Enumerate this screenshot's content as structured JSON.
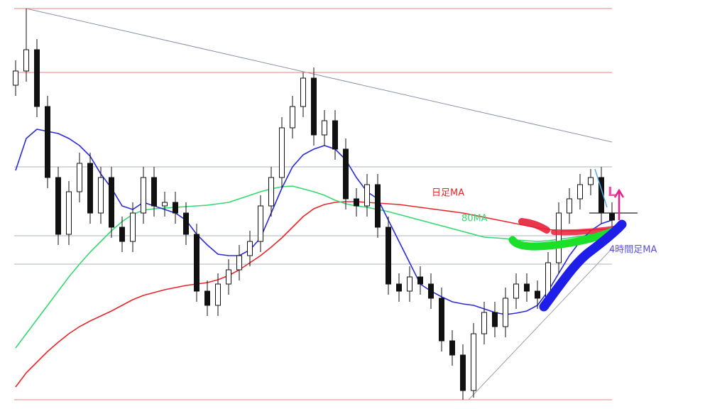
{
  "chart_data": {
    "type": "candlestick",
    "ylim": [
      0,
      576
    ],
    "open": [
      456,
      476,
      506,
      426,
      326,
      246,
      306,
      346,
      276,
      326,
      256,
      236,
      276,
      326,
      286,
      291,
      276,
      246,
      166,
      146,
      176,
      196,
      216,
      236,
      286,
      326,
      396,
      426,
      466,
      386,
      406,
      366,
      296,
      286,
      316,
      256,
      176,
      166,
      186,
      176,
      156,
      96,
      76,
      26,
      106,
      136,
      116,
      156,
      176,
      166,
      156,
      206,
      276,
      296,
      316,
      326,
      276
    ],
    "high": [
      491,
      564,
      521,
      441,
      341,
      321,
      361,
      361,
      341,
      341,
      271,
      291,
      341,
      341,
      306,
      306,
      291,
      261,
      181,
      191,
      211,
      231,
      251,
      301,
      341,
      411,
      441,
      474,
      481,
      421,
      421,
      381,
      311,
      331,
      331,
      271,
      191,
      201,
      201,
      191,
      171,
      111,
      91,
      121,
      151,
      151,
      171,
      191,
      191,
      181,
      221,
      291,
      311,
      331,
      338,
      341,
      291
    ],
    "low": [
      441,
      461,
      411,
      311,
      231,
      231,
      291,
      261,
      261,
      241,
      221,
      221,
      261,
      271,
      271,
      261,
      231,
      151,
      131,
      131,
      161,
      181,
      201,
      221,
      271,
      311,
      381,
      411,
      371,
      371,
      351,
      281,
      271,
      271,
      241,
      161,
      151,
      151,
      161,
      141,
      81,
      61,
      13,
      16,
      91,
      101,
      101,
      141,
      151,
      141,
      141,
      191,
      261,
      281,
      301,
      261,
      251
    ],
    "close": [
      476,
      506,
      426,
      326,
      246,
      306,
      346,
      276,
      326,
      256,
      236,
      276,
      326,
      286,
      291,
      276,
      246,
      166,
      146,
      176,
      196,
      216,
      236,
      286,
      326,
      396,
      426,
      466,
      386,
      406,
      366,
      296,
      286,
      316,
      256,
      176,
      166,
      186,
      176,
      156,
      96,
      76,
      26,
      106,
      136,
      116,
      156,
      176,
      166,
      156,
      206,
      276,
      296,
      316,
      326,
      276,
      266
    ],
    "lines": [
      {
        "name": "日足MA",
        "color": "#e8262a",
        "values": [
          31,
          51,
          66,
          81,
          94,
          106,
          116,
          124,
          131,
          138,
          146,
          154,
          160,
          164,
          168,
          171,
          174,
          176,
          178,
          182,
          188,
          196,
          206,
          216,
          228,
          241,
          256,
          271,
          282,
          288,
          291,
          292,
          292,
          291,
          290,
          289,
          288,
          286,
          284,
          282,
          280,
          278,
          276,
          273,
          270,
          267,
          264,
          261,
          258,
          255,
          253,
          251,
          251,
          251,
          252,
          253,
          254
        ]
      },
      {
        "name": "80MA",
        "color": "#34d970",
        "values": [
          86,
          106,
          126,
          146,
          166,
          186,
          204,
          221,
          236,
          251,
          264,
          274,
          280,
          282,
          283,
          284,
          285,
          286,
          287,
          289,
          291,
          296,
          301,
          306,
          310,
          313,
          314,
          310,
          306,
          301,
          294,
          289,
          286,
          284,
          281,
          278,
          274,
          270,
          266,
          262,
          258,
          254,
          250,
          246,
          242,
          241,
          240,
          238,
          237,
          236,
          237,
          239,
          241,
          243,
          246,
          249,
          251
        ]
      },
      {
        "name": "4時間足MA",
        "color": "#2b2bd8",
        "values": [
          336,
          381,
          394,
          391,
          388,
          381,
          371,
          356,
          331,
          311,
          286,
          281,
          291,
          286,
          281,
          276,
          266,
          246,
          231,
          218,
          216,
          216,
          224,
          241,
          276,
          311,
          341,
          358,
          366,
          371,
          366,
          351,
          326,
          306,
          296,
          266,
          236,
          206,
          176,
          166,
          158,
          151,
          148,
          146,
          141,
          136,
          133,
          135,
          138,
          146,
          166,
          191,
          216,
          236,
          251,
          261,
          266
        ]
      }
    ],
    "levels": [
      {
        "value": 564,
        "color": "#e88080"
      },
      {
        "value": 474,
        "color": "#e88080"
      },
      {
        "value": 341,
        "color": "#a9b4bf"
      },
      {
        "value": 244,
        "color": "#a9b4bf"
      },
      {
        "value": 204,
        "color": "#a9b4bf"
      },
      {
        "value": 13,
        "color": "#e88080"
      }
    ],
    "annotation": "L"
  }
}
